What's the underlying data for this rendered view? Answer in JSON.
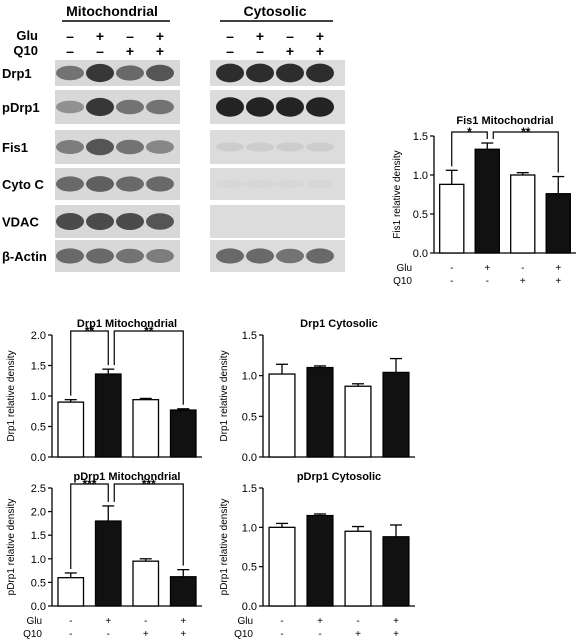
{
  "blot": {
    "header_left": "Mitochondrial",
    "header_right": "Cytosolic",
    "row_labels": [
      "Glu",
      "Q10"
    ],
    "glu_signs": [
      "–",
      "+",
      "–",
      "+",
      "–",
      "+",
      "–",
      "+"
    ],
    "q10_signs": [
      "–",
      "–",
      "+",
      "+",
      "–",
      "–",
      "+",
      "+"
    ],
    "bands": [
      {
        "label": "Drp1",
        "mito": [
          0.55,
          0.85,
          0.6,
          0.7
        ],
        "cyto": [
          0.9,
          0.9,
          0.9,
          0.9
        ]
      },
      {
        "label": "pDrp1",
        "mito": [
          0.4,
          0.85,
          0.55,
          0.55
        ],
        "cyto": [
          0.95,
          0.95,
          0.95,
          0.95
        ]
      },
      {
        "label": "Fis1",
        "mito": [
          0.5,
          0.7,
          0.55,
          0.45
        ],
        "cyto": [
          0.1,
          0.1,
          0.1,
          0.1
        ]
      },
      {
        "label": "Cyto C",
        "mito": [
          0.6,
          0.65,
          0.6,
          0.6
        ],
        "cyto": [
          0.05,
          0.05,
          0.05,
          0.05
        ]
      },
      {
        "label": "VDAC",
        "mito": [
          0.75,
          0.75,
          0.75,
          0.7
        ],
        "cyto": [
          0,
          0,
          0,
          0
        ]
      },
      {
        "label": "β-Actin",
        "mito": [
          0.6,
          0.6,
          0.55,
          0.5
        ],
        "cyto": [
          0.6,
          0.6,
          0.55,
          0.6
        ]
      }
    ]
  },
  "colors": {
    "filled": "#111111",
    "open": "#ffffff"
  },
  "chart_data": [
    {
      "id": "fis1-mito",
      "type": "bar",
      "title": "Fis1 Mitochondrial",
      "ylabel": "Fis1 relative density",
      "ylim": [
        0,
        1.5
      ],
      "yticks": [
        "0.0",
        "0.5",
        "1.0",
        "1.5"
      ],
      "values": [
        0.88,
        1.33,
        1.0,
        0.76
      ],
      "errors": [
        0.18,
        0.08,
        0.03,
        0.22
      ],
      "fills": [
        "open",
        "filled",
        "open",
        "filled"
      ],
      "glu": [
        "-",
        "+",
        "-",
        "+"
      ],
      "q10": [
        "-",
        "-",
        "+",
        "+"
      ],
      "sig": [
        {
          "from": 0,
          "to": 1,
          "label": "*"
        },
        {
          "from": 1,
          "to": 3,
          "label": "**"
        }
      ]
    },
    {
      "id": "drp1-mito",
      "type": "bar",
      "title": "Drp1 Mitochondrial",
      "ylabel": "Drp1 relative density",
      "ylim": [
        0,
        2.0
      ],
      "yticks": [
        "0.0",
        "0.5",
        "1.0",
        "1.5",
        "2.0"
      ],
      "values": [
        0.9,
        1.36,
        0.94,
        0.77
      ],
      "errors": [
        0.04,
        0.08,
        0.02,
        0.02
      ],
      "fills": [
        "open",
        "filled",
        "open",
        "filled"
      ],
      "sig": [
        {
          "from": 0,
          "to": 1,
          "label": "**"
        },
        {
          "from": 1,
          "to": 3,
          "label": "**"
        }
      ]
    },
    {
      "id": "drp1-cyto",
      "type": "bar",
      "title": "Drp1 Cytosolic",
      "ylabel": "Drp1 relative density",
      "ylim": [
        0,
        1.5
      ],
      "yticks": [
        "0.0",
        "0.5",
        "1.0",
        "1.5"
      ],
      "values": [
        1.02,
        1.1,
        0.87,
        1.04
      ],
      "errors": [
        0.12,
        0.02,
        0.03,
        0.17
      ],
      "fills": [
        "open",
        "filled",
        "open",
        "filled"
      ],
      "sig": []
    },
    {
      "id": "pdrp1-mito",
      "type": "bar",
      "title": "pDrp1 Mitochondrial",
      "ylabel": "pDrp1 relative density",
      "ylim": [
        0,
        2.5
      ],
      "yticks": [
        "0.0",
        "0.5",
        "1.0",
        "1.5",
        "2.0",
        "2.5"
      ],
      "values": [
        0.6,
        1.8,
        0.95,
        0.62
      ],
      "errors": [
        0.1,
        0.32,
        0.05,
        0.15
      ],
      "fills": [
        "open",
        "filled",
        "open",
        "filled"
      ],
      "glu": [
        "-",
        "+",
        "-",
        "+"
      ],
      "q10": [
        "-",
        "-",
        "+",
        "+"
      ],
      "sig": [
        {
          "from": 0,
          "to": 1,
          "label": "***"
        },
        {
          "from": 1,
          "to": 3,
          "label": "***"
        }
      ]
    },
    {
      "id": "pdrp1-cyto",
      "type": "bar",
      "title": "pDrp1 Cytosolic",
      "ylabel": "pDrp1 relative density",
      "ylim": [
        0,
        1.5
      ],
      "yticks": [
        "0.0",
        "0.5",
        "1.0",
        "1.5"
      ],
      "values": [
        1.0,
        1.15,
        0.95,
        0.88
      ],
      "errors": [
        0.05,
        0.02,
        0.06,
        0.15
      ],
      "fills": [
        "open",
        "filled",
        "open",
        "filled"
      ],
      "glu": [
        "-",
        "+",
        "-",
        "+"
      ],
      "q10": [
        "-",
        "-",
        "+",
        "+"
      ],
      "sig": []
    }
  ]
}
